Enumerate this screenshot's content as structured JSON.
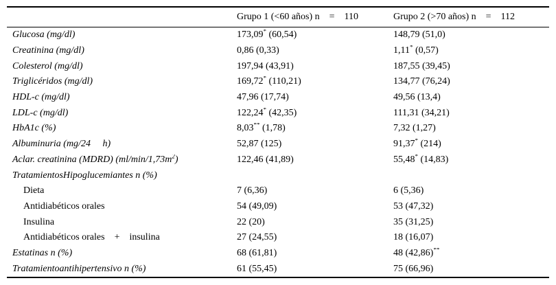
{
  "table": {
    "header": {
      "col1": "Grupo 1 (<60 años) n    =    110",
      "col2": "Grupo 2 (>70 años) n    =    112"
    },
    "rows": [
      {
        "label": {
          "pre": "Glucosa (mg/dl)",
          "sup": "",
          "post": ""
        },
        "g1": {
          "pre": "173,09",
          "sup": "*",
          "post": " (60,54)"
        },
        "g2": {
          "pre": "148,79",
          "sup": "",
          "post": " (51,0)"
        }
      },
      {
        "label": {
          "pre": "Creatinina (mg/dl)",
          "sup": "",
          "post": ""
        },
        "g1": {
          "pre": "0,86",
          "sup": "",
          "post": " (0,33)"
        },
        "g2": {
          "pre": "1,11",
          "sup": "*",
          "post": " (0,57)"
        }
      },
      {
        "label": {
          "pre": "Colesterol (mg/dl)",
          "sup": "",
          "post": ""
        },
        "g1": {
          "pre": "197,94",
          "sup": "",
          "post": " (43,91)"
        },
        "g2": {
          "pre": "187,55",
          "sup": "",
          "post": " (39,45)"
        }
      },
      {
        "label": {
          "pre": "Triglicéridos (mg/dl)",
          "sup": "",
          "post": ""
        },
        "g1": {
          "pre": "169,72",
          "sup": "*",
          "post": " (110,21)"
        },
        "g2": {
          "pre": "134,77",
          "sup": "",
          "post": " (76,24)"
        }
      },
      {
        "label": {
          "pre": "HDL-c (mg/dl)",
          "sup": "",
          "post": ""
        },
        "g1": {
          "pre": "47,96",
          "sup": "",
          "post": " (17,74)"
        },
        "g2": {
          "pre": "49,56",
          "sup": "",
          "post": " (13,4)"
        }
      },
      {
        "label": {
          "pre": "LDL-c (mg/dl)",
          "sup": "",
          "post": ""
        },
        "g1": {
          "pre": "122,24",
          "sup": "*",
          "post": " (42,35)"
        },
        "g2": {
          "pre": "111,31",
          "sup": "",
          "post": " (34,21)"
        }
      },
      {
        "label": {
          "pre": "HbA1c (%)",
          "sup": "",
          "post": ""
        },
        "g1": {
          "pre": "8,03",
          "sup": "**",
          "post": " (1,78)"
        },
        "g2": {
          "pre": "7,32",
          "sup": "",
          "post": " (1,27)"
        }
      },
      {
        "label": {
          "pre": "Albuminuria (mg/24     h)",
          "sup": "",
          "post": ""
        },
        "g1": {
          "pre": "52,87",
          "sup": "",
          "post": " (125)"
        },
        "g2": {
          "pre": "91,37",
          "sup": "*",
          "post": " (214)"
        }
      },
      {
        "label": {
          "pre": "Aclar. creatinina (MDRD) (ml/min/1,73m",
          "sup": "2",
          "post": ")"
        },
        "g1": {
          "pre": "122,46",
          "sup": "",
          "post": " (41,89)"
        },
        "g2": {
          "pre": "55,48",
          "sup": "*",
          "post": " (14,83)"
        }
      },
      {
        "label": {
          "pre": "TratamientosHipoglucemiantes n (%)",
          "sup": "",
          "post": ""
        },
        "g1": {
          "pre": "",
          "sup": "",
          "post": ""
        },
        "g2": {
          "pre": "",
          "sup": "",
          "post": ""
        }
      },
      {
        "label": {
          "pre": "Dieta",
          "sup": "",
          "post": ""
        },
        "g1": {
          "pre": "7",
          "sup": "",
          "post": " (6,36)"
        },
        "g2": {
          "pre": "6",
          "sup": "",
          "post": " (5,36)"
        }
      },
      {
        "label": {
          "pre": "Antidiabéticos orales",
          "sup": "",
          "post": ""
        },
        "g1": {
          "pre": "54",
          "sup": "",
          "post": " (49,09)"
        },
        "g2": {
          "pre": "53",
          "sup": "",
          "post": " (47,32)"
        }
      },
      {
        "label": {
          "pre": "Insulina",
          "sup": "",
          "post": ""
        },
        "g1": {
          "pre": "22",
          "sup": "",
          "post": " (20)"
        },
        "g2": {
          "pre": "35",
          "sup": "",
          "post": " (31,25)"
        }
      },
      {
        "label": {
          "pre": "Antidiabéticos orales    +    insulina",
          "sup": "",
          "post": ""
        },
        "g1": {
          "pre": "27",
          "sup": "",
          "post": " (24,55)"
        },
        "g2": {
          "pre": "18",
          "sup": "",
          "post": " (16,07)"
        }
      },
      {
        "label": {
          "pre": "Estatinas n (%)",
          "sup": "",
          "post": ""
        },
        "g1": {
          "pre": "68",
          "sup": "",
          "post": " (61,81)"
        },
        "g2": {
          "pre": "48 (42,86)",
          "sup": "**",
          "post": ""
        }
      },
      {
        "label": {
          "pre": "Tratamientoantihipertensivo n (%)",
          "sup": "",
          "post": ""
        },
        "g1": {
          "pre": "61",
          "sup": "",
          "post": " (55,45)"
        },
        "g2": {
          "pre": "75",
          "sup": "",
          "post": " (66,96)"
        }
      }
    ]
  }
}
